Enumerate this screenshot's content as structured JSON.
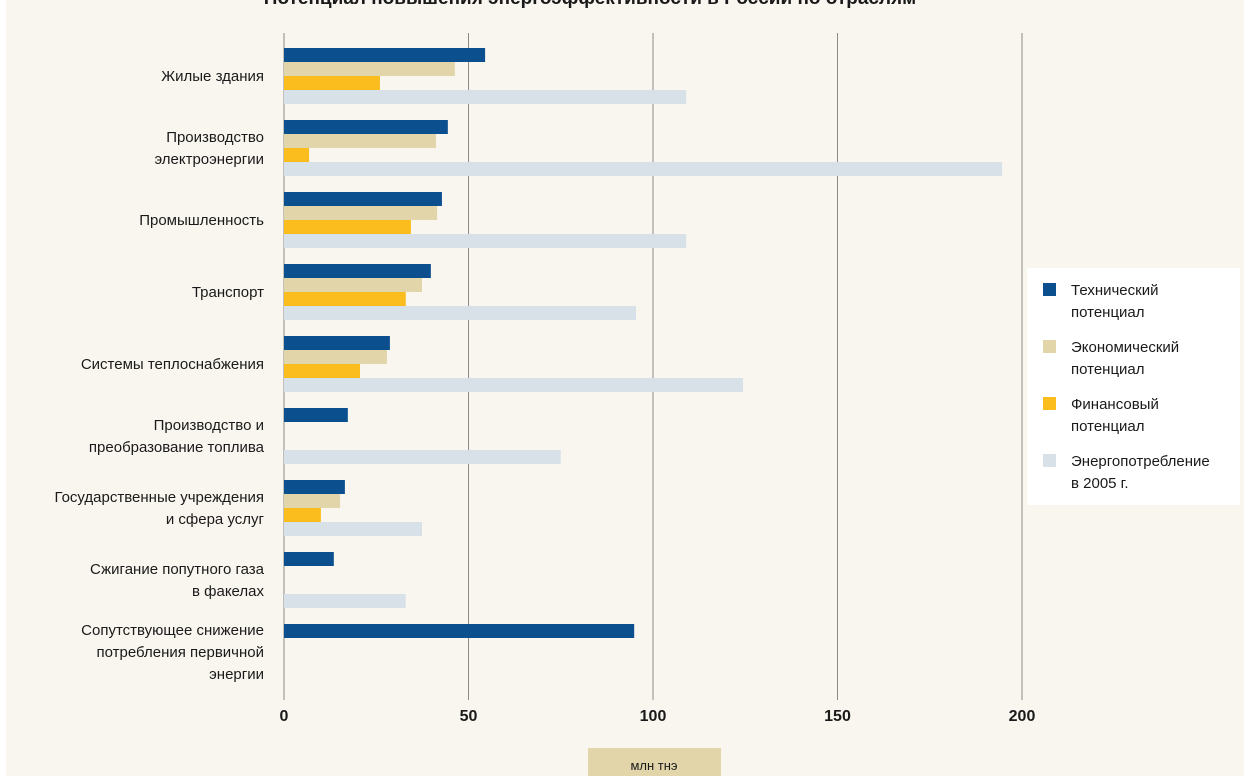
{
  "chart_data": {
    "type": "hbar",
    "title": "Потенциал повышения энергоэффективности в России по отраслям",
    "x_label": "млн тнэ",
    "categories": [
      "Жилые здания",
      "Производство\nэлектроэнергии",
      "Промышленность",
      "Транспорт",
      "Системы теплоснабжения",
      "Производство и\nпреобразование топлива",
      "Государственные учреждения\nи сфера услуг",
      "Сжигание попутного газа\nв факелах",
      "Сопутствующее снижение\nпотребления первичной\nэнергии"
    ],
    "series": [
      {
        "name": "Технический\nпотенциал",
        "color": "#0b4f8f",
        "values": [
          54.5,
          44.4,
          42.8,
          39.8,
          28.7,
          17.3,
          16.5,
          13.5,
          94.9
        ]
      },
      {
        "name": "Экономический\nпотенциал",
        "color": "#e3d5aa",
        "values": [
          46.3,
          41.2,
          41.5,
          37.4,
          27.9,
          null,
          15.2,
          null,
          null
        ]
      },
      {
        "name": "Финансовый\nпотенциал",
        "color": "#fbbd1d",
        "values": [
          26,
          6.8,
          34.4,
          33,
          20.6,
          null,
          10,
          null,
          null
        ]
      },
      {
        "name": "Энергопотребление\nв 2005 г.",
        "color": "#d8e1e8",
        "values": [
          109,
          194.6,
          109,
          95.4,
          124.4,
          75,
          37.4,
          33,
          null
        ]
      }
    ],
    "xlim": [
      0,
      200
    ],
    "xticks": [
      0,
      50,
      100,
      150,
      200
    ],
    "grid": true,
    "legend": "right"
  }
}
